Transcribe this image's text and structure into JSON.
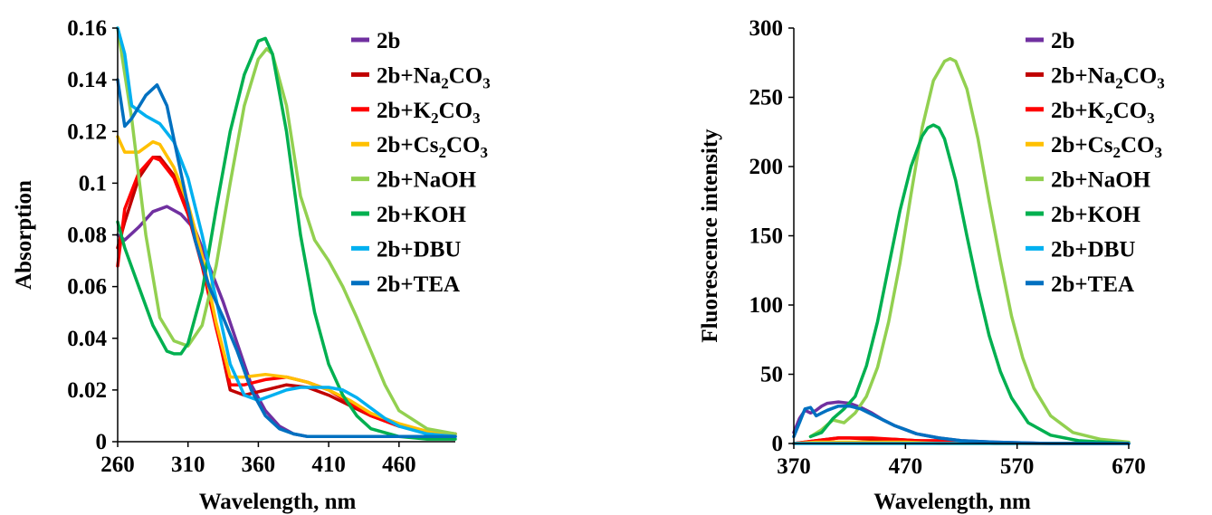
{
  "chart_data": [
    {
      "type": "line",
      "xlabel": "Wavelength, nm",
      "ylabel": "Absorption",
      "xlim": [
        260,
        500
      ],
      "ylim": [
        0,
        0.16
      ],
      "xticks": [
        260,
        310,
        360,
        410,
        460
      ],
      "yticks": [
        0,
        0.02,
        0.04,
        0.06,
        0.08,
        0.1,
        0.12,
        0.14,
        0.16
      ],
      "ytick_labels": [
        "0",
        "0.02",
        "0.04",
        "0.06",
        "0.08",
        "0.1",
        "0.12",
        "0.14",
        "0.16"
      ],
      "grid": false,
      "legend": "right",
      "series": [
        {
          "name": "2b",
          "color": "#7030A0",
          "x": [
            260,
            265,
            275,
            285,
            295,
            305,
            315,
            325,
            335,
            345,
            355,
            365,
            375,
            385,
            395,
            405,
            420,
            440,
            460,
            480,
            500
          ],
          "y": [
            0.08,
            0.078,
            0.083,
            0.089,
            0.091,
            0.088,
            0.082,
            0.068,
            0.054,
            0.038,
            0.022,
            0.012,
            0.006,
            0.003,
            0.002,
            0.002,
            0.002,
            0.002,
            0.002,
            0.002,
            0.002
          ]
        },
        {
          "name": "2b+Na2CO3",
          "color": "#C00000",
          "x": [
            260,
            265,
            275,
            285,
            290,
            300,
            310,
            320,
            330,
            340,
            350,
            365,
            380,
            395,
            410,
            425,
            440,
            460,
            480,
            500
          ],
          "y": [
            0.075,
            0.085,
            0.102,
            0.11,
            0.11,
            0.103,
            0.09,
            0.07,
            0.045,
            0.02,
            0.018,
            0.02,
            0.022,
            0.021,
            0.018,
            0.014,
            0.01,
            0.006,
            0.004,
            0.003
          ]
        },
        {
          "name": "2b+K2CO3",
          "color": "#FF0000",
          "x": [
            260,
            265,
            275,
            285,
            290,
            300,
            310,
            320,
            330,
            340,
            350,
            365,
            380,
            395,
            410,
            425,
            440,
            460,
            480,
            500
          ],
          "y": [
            0.068,
            0.09,
            0.104,
            0.11,
            0.109,
            0.102,
            0.088,
            0.068,
            0.044,
            0.022,
            0.022,
            0.024,
            0.025,
            0.023,
            0.02,
            0.015,
            0.01,
            0.006,
            0.004,
            0.003
          ]
        },
        {
          "name": "2b+Cs2CO3",
          "color": "#FFC000",
          "x": [
            260,
            265,
            275,
            285,
            290,
            300,
            310,
            320,
            330,
            340,
            350,
            365,
            380,
            395,
            410,
            425,
            440,
            460,
            480,
            500
          ],
          "y": [
            0.118,
            0.112,
            0.112,
            0.116,
            0.115,
            0.106,
            0.092,
            0.072,
            0.046,
            0.025,
            0.025,
            0.026,
            0.025,
            0.023,
            0.02,
            0.016,
            0.011,
            0.007,
            0.004,
            0.003
          ]
        },
        {
          "name": "2b+NaOH",
          "color": "#92D050",
          "x": [
            260,
            270,
            280,
            290,
            300,
            310,
            320,
            330,
            340,
            350,
            360,
            366,
            370,
            380,
            390,
            400,
            410,
            420,
            430,
            440,
            450,
            460,
            480,
            500
          ],
          "y": [
            0.16,
            0.125,
            0.08,
            0.048,
            0.039,
            0.037,
            0.045,
            0.068,
            0.1,
            0.13,
            0.148,
            0.152,
            0.15,
            0.13,
            0.095,
            0.078,
            0.07,
            0.06,
            0.048,
            0.035,
            0.022,
            0.012,
            0.005,
            0.003
          ]
        },
        {
          "name": "2b+KOH",
          "color": "#00B050",
          "x": [
            260,
            265,
            275,
            285,
            295,
            300,
            305,
            310,
            320,
            330,
            340,
            350,
            360,
            365,
            370,
            380,
            390,
            400,
            410,
            420,
            430,
            440,
            460,
            480,
            500
          ],
          "y": [
            0.085,
            0.075,
            0.06,
            0.045,
            0.035,
            0.034,
            0.034,
            0.038,
            0.058,
            0.09,
            0.12,
            0.142,
            0.155,
            0.156,
            0.15,
            0.12,
            0.08,
            0.05,
            0.03,
            0.018,
            0.01,
            0.005,
            0.002,
            0.001,
            0.001
          ]
        },
        {
          "name": "2b+DBU",
          "color": "#00B0F0",
          "x": [
            260,
            265,
            270,
            280,
            290,
            300,
            310,
            320,
            330,
            340,
            350,
            360,
            370,
            380,
            390,
            400,
            410,
            420,
            430,
            440,
            450,
            460,
            480,
            500
          ],
          "y": [
            0.16,
            0.15,
            0.13,
            0.126,
            0.123,
            0.116,
            0.102,
            0.08,
            0.055,
            0.03,
            0.018,
            0.016,
            0.018,
            0.02,
            0.021,
            0.021,
            0.021,
            0.02,
            0.017,
            0.013,
            0.009,
            0.006,
            0.003,
            0.002
          ]
        },
        {
          "name": "2b+TEA",
          "color": "#0070C0",
          "x": [
            260,
            265,
            270,
            280,
            288,
            295,
            305,
            315,
            325,
            335,
            345,
            355,
            365,
            375,
            385,
            395,
            410,
            430,
            460,
            500
          ],
          "y": [
            0.14,
            0.122,
            0.125,
            0.134,
            0.138,
            0.13,
            0.104,
            0.078,
            0.06,
            0.048,
            0.035,
            0.02,
            0.01,
            0.005,
            0.003,
            0.002,
            0.002,
            0.002,
            0.002,
            0.002
          ]
        }
      ]
    },
    {
      "type": "line",
      "xlabel": "Wavelength, nm",
      "ylabel": "Fluorescence intensity",
      "xlim": [
        370,
        670
      ],
      "ylim": [
        0,
        300
      ],
      "xticks": [
        370,
        470,
        570,
        670
      ],
      "yticks": [
        0,
        50,
        100,
        150,
        200,
        250,
        300
      ],
      "ytick_labels": [
        "0",
        "50",
        "100",
        "150",
        "200",
        "250",
        "300"
      ],
      "grid": false,
      "legend": "right",
      "series": [
        {
          "name": "2b",
          "color": "#7030A0",
          "x": [
            370,
            375,
            380,
            385,
            390,
            395,
            400,
            410,
            420,
            430,
            440,
            450,
            460,
            470,
            480,
            500,
            520,
            550,
            600,
            670
          ],
          "y": [
            8,
            18,
            24,
            22,
            24,
            27,
            29,
            30,
            29,
            26,
            22,
            17,
            13,
            10,
            7,
            4,
            2,
            1,
            0,
            0
          ]
        },
        {
          "name": "2b+Na2CO3",
          "color": "#C00000",
          "x": [
            370,
            380,
            390,
            400,
            410,
            420,
            440,
            460,
            480,
            500,
            520,
            550,
            600,
            670
          ],
          "y": [
            0,
            1,
            2,
            3,
            4,
            4,
            3,
            3,
            2,
            1,
            1,
            0,
            0,
            0
          ]
        },
        {
          "name": "2b+K2CO3",
          "color": "#FF0000",
          "x": [
            370,
            380,
            390,
            400,
            410,
            420,
            440,
            460,
            480,
            500,
            520,
            550,
            600,
            670
          ],
          "y": [
            0,
            1,
            2,
            3,
            4,
            4,
            4,
            3,
            2,
            2,
            1,
            0,
            0,
            0
          ]
        },
        {
          "name": "2b+Cs2CO3",
          "color": "#FFC000",
          "x": [
            370,
            390,
            410,
            430,
            450,
            470,
            500,
            550,
            600,
            670
          ],
          "y": [
            0,
            1,
            1,
            1,
            1,
            1,
            0,
            0,
            0,
            0
          ]
        },
        {
          "name": "2b+NaOH",
          "color": "#92D050",
          "x": [
            385,
            395,
            405,
            415,
            425,
            435,
            445,
            455,
            465,
            475,
            485,
            495,
            505,
            510,
            515,
            525,
            535,
            545,
            555,
            565,
            575,
            585,
            600,
            620,
            645,
            670
          ],
          "y": [
            5,
            10,
            17,
            15,
            22,
            34,
            55,
            88,
            130,
            180,
            228,
            262,
            276,
            278,
            276,
            256,
            220,
            175,
            132,
            92,
            62,
            40,
            20,
            8,
            3,
            1
          ]
        },
        {
          "name": "2b+KOH",
          "color": "#00B050",
          "x": [
            385,
            395,
            405,
            415,
            425,
            435,
            445,
            455,
            465,
            475,
            485,
            490,
            495,
            500,
            505,
            515,
            525,
            535,
            545,
            555,
            565,
            580,
            600,
            625,
            670
          ],
          "y": [
            5,
            8,
            18,
            25,
            34,
            56,
            88,
            128,
            168,
            200,
            222,
            228,
            230,
            228,
            220,
            190,
            150,
            112,
            78,
            52,
            33,
            15,
            6,
            2,
            0
          ]
        },
        {
          "name": "2b+DBU",
          "color": "#00B0F0",
          "x": [
            370,
            400,
            450,
            500,
            550,
            600,
            670
          ],
          "y": [
            0,
            0,
            0,
            0,
            0,
            0,
            0
          ]
        },
        {
          "name": "2b+TEA",
          "color": "#0070C0",
          "x": [
            370,
            375,
            380,
            385,
            390,
            395,
            400,
            410,
            420,
            430,
            440,
            450,
            460,
            470,
            480,
            500,
            520,
            550,
            600,
            670
          ],
          "y": [
            5,
            15,
            25,
            26,
            20,
            22,
            24,
            27,
            27,
            25,
            21,
            17,
            13,
            10,
            7,
            4,
            2,
            1,
            0,
            0
          ]
        }
      ]
    }
  ]
}
